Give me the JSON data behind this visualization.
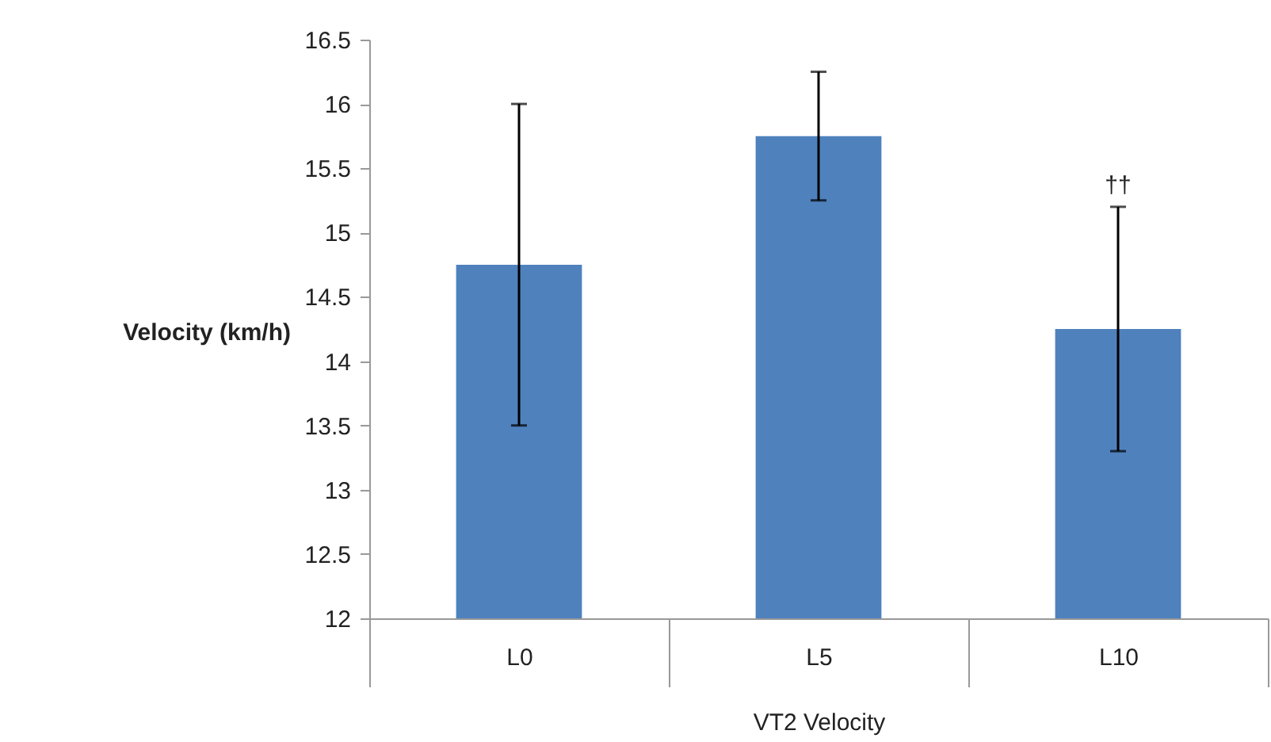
{
  "chart_data": {
    "type": "bar",
    "ylabel": "Velocity (km/h)",
    "xlabel": "VT2 Velocity",
    "categories": [
      "L0",
      "L5",
      "L10"
    ],
    "values": [
      14.75,
      15.75,
      14.25
    ],
    "errors": [
      [
        13.5,
        16
      ],
      [
        15.25,
        16.25
      ],
      [
        13.3,
        15.2
      ]
    ],
    "color": "#4f81bd",
    "ylim": [
      12,
      16.5
    ],
    "yticks": [
      12,
      12.5,
      13,
      13.5,
      14,
      14.5,
      15,
      15.5,
      16,
      16.5
    ],
    "grid": false,
    "annotations": [
      {
        "text": "††",
        "x": "L10",
        "y": 15.2
      }
    ]
  }
}
